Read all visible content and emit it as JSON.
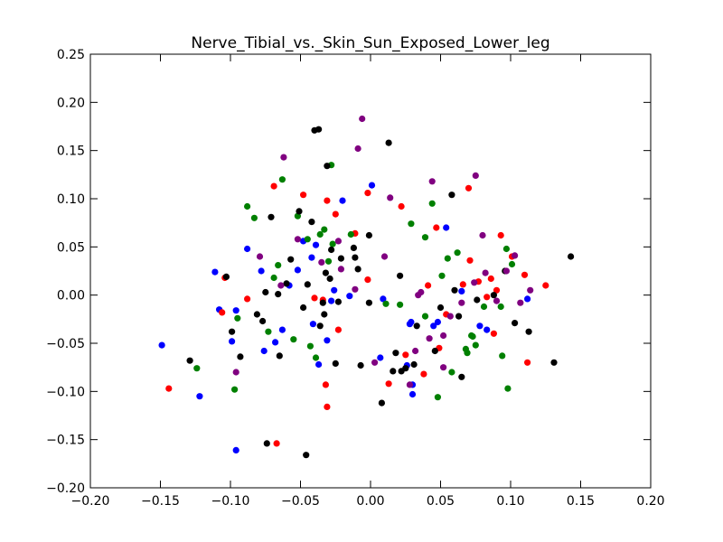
{
  "chart_data": {
    "type": "scatter",
    "title": "Nerve_Tibial_vs._Skin_Sun_Exposed_Lower_leg",
    "xlabel": "",
    "ylabel": "",
    "xlim": [
      -0.2,
      0.2
    ],
    "ylim": [
      -0.2,
      0.25
    ],
    "x_ticks": [
      -0.2,
      -0.15,
      -0.1,
      -0.05,
      0.0,
      0.05,
      0.1,
      0.15,
      0.2
    ],
    "y_ticks": [
      -0.2,
      -0.15,
      -0.1,
      -0.05,
      0.0,
      0.05,
      0.1,
      0.15,
      0.2,
      0.25
    ],
    "x_tick_labels": [
      "−0.20",
      "−0.15",
      "−0.10",
      "−0.05",
      "0.00",
      "0.05",
      "0.10",
      "0.15",
      "0.20"
    ],
    "y_tick_labels": [
      "−0.20",
      "−0.15",
      "−0.10",
      "−0.05",
      "0.00",
      "0.05",
      "0.10",
      "0.15",
      "0.20",
      "0.25"
    ],
    "grid": false,
    "legend": "none",
    "series": [
      {
        "color": "#0000ff",
        "points": [
          [
            -0.149,
            -0.052
          ],
          [
            -0.122,
            -0.105
          ],
          [
            -0.111,
            0.024
          ],
          [
            -0.108,
            -0.015
          ],
          [
            -0.099,
            -0.048
          ],
          [
            -0.096,
            -0.016
          ],
          [
            -0.096,
            -0.161
          ],
          [
            -0.088,
            0.048
          ],
          [
            -0.078,
            0.025
          ],
          [
            -0.076,
            -0.058
          ],
          [
            -0.068,
            -0.049
          ],
          [
            -0.063,
            -0.036
          ],
          [
            -0.058,
            0.01
          ],
          [
            -0.052,
            0.026
          ],
          [
            -0.048,
            0.056
          ],
          [
            -0.042,
            0.039
          ],
          [
            -0.041,
            -0.03
          ],
          [
            -0.039,
            0.052
          ],
          [
            -0.037,
            -0.072
          ],
          [
            -0.031,
            -0.047
          ],
          [
            -0.028,
            -0.006
          ],
          [
            -0.026,
            0.005
          ],
          [
            -0.02,
            0.098
          ],
          [
            -0.015,
            -0.001
          ],
          [
            0.001,
            0.114
          ],
          [
            0.007,
            -0.065
          ],
          [
            0.009,
            -0.004
          ],
          [
            0.026,
            -0.073
          ],
          [
            0.028,
            -0.03
          ],
          [
            0.029,
            -0.028
          ],
          [
            0.03,
            -0.093
          ],
          [
            0.03,
            -0.103
          ],
          [
            0.045,
            -0.032
          ],
          [
            0.048,
            -0.028
          ],
          [
            0.054,
            0.07
          ],
          [
            0.065,
            0.004
          ],
          [
            0.078,
            -0.032
          ],
          [
            0.083,
            -0.036
          ],
          [
            0.112,
            -0.004
          ]
        ]
      },
      {
        "color": "#ff0000",
        "points": [
          [
            -0.144,
            -0.097
          ],
          [
            -0.104,
            0.018
          ],
          [
            -0.106,
            -0.018
          ],
          [
            -0.088,
            -0.004
          ],
          [
            -0.069,
            0.113
          ],
          [
            -0.067,
            -0.154
          ],
          [
            -0.048,
            0.104
          ],
          [
            -0.04,
            -0.003
          ],
          [
            -0.034,
            -0.005
          ],
          [
            -0.032,
            -0.093
          ],
          [
            -0.031,
            -0.116
          ],
          [
            -0.031,
            0.098
          ],
          [
            -0.025,
            0.084
          ],
          [
            -0.023,
            -0.036
          ],
          [
            -0.011,
            0.064
          ],
          [
            -0.002,
            0.106
          ],
          [
            -0.002,
            0.016
          ],
          [
            0.013,
            -0.092
          ],
          [
            0.022,
            0.092
          ],
          [
            0.025,
            -0.062
          ],
          [
            0.038,
            -0.082
          ],
          [
            0.041,
            0.01
          ],
          [
            0.047,
            0.07
          ],
          [
            0.049,
            -0.055
          ],
          [
            0.054,
            -0.02
          ],
          [
            0.066,
            0.011
          ],
          [
            0.07,
            0.111
          ],
          [
            0.071,
            0.036
          ],
          [
            0.077,
            0.014
          ],
          [
            0.083,
            -0.002
          ],
          [
            0.086,
            0.017
          ],
          [
            0.09,
            0.005
          ],
          [
            0.093,
            0.062
          ],
          [
            0.101,
            0.04
          ],
          [
            0.11,
            0.021
          ],
          [
            0.112,
            -0.07
          ],
          [
            0.125,
            0.01
          ],
          [
            0.088,
            -0.04
          ]
        ]
      },
      {
        "color": "#008000",
        "points": [
          [
            -0.124,
            -0.076
          ],
          [
            -0.097,
            -0.098
          ],
          [
            -0.095,
            -0.024
          ],
          [
            -0.088,
            0.092
          ],
          [
            -0.083,
            0.08
          ],
          [
            -0.073,
            -0.038
          ],
          [
            -0.069,
            0.018
          ],
          [
            -0.066,
            0.031
          ],
          [
            -0.063,
            0.12
          ],
          [
            -0.055,
            -0.046
          ],
          [
            -0.052,
            0.082
          ],
          [
            -0.045,
            0.058
          ],
          [
            -0.043,
            -0.053
          ],
          [
            -0.039,
            -0.065
          ],
          [
            -0.036,
            0.063
          ],
          [
            -0.033,
            0.068
          ],
          [
            -0.03,
            0.035
          ],
          [
            -0.028,
            0.135
          ],
          [
            -0.027,
            0.053
          ],
          [
            -0.014,
            0.063
          ],
          [
            0.011,
            -0.009
          ],
          [
            0.021,
            -0.01
          ],
          [
            0.029,
            0.074
          ],
          [
            0.039,
            0.06
          ],
          [
            0.039,
            -0.022
          ],
          [
            0.044,
            0.095
          ],
          [
            0.048,
            -0.106
          ],
          [
            0.051,
            0.02
          ],
          [
            0.055,
            0.038
          ],
          [
            0.058,
            -0.08
          ],
          [
            0.062,
            0.044
          ],
          [
            0.068,
            -0.056
          ],
          [
            0.069,
            -0.06
          ],
          [
            0.072,
            -0.042
          ],
          [
            0.073,
            -0.043
          ],
          [
            0.075,
            -0.052
          ],
          [
            0.081,
            -0.012
          ],
          [
            0.093,
            -0.012
          ],
          [
            0.094,
            -0.063
          ],
          [
            0.097,
            0.048
          ],
          [
            0.098,
            -0.097
          ],
          [
            0.101,
            0.032
          ]
        ]
      },
      {
        "color": "#000000",
        "points": [
          [
            -0.129,
            -0.068
          ],
          [
            -0.103,
            0.019
          ],
          [
            -0.099,
            -0.038
          ],
          [
            -0.093,
            -0.064
          ],
          [
            -0.081,
            -0.02
          ],
          [
            -0.077,
            -0.027
          ],
          [
            -0.075,
            0.003
          ],
          [
            -0.074,
            -0.154
          ],
          [
            -0.071,
            0.081
          ],
          [
            -0.066,
            0.001
          ],
          [
            -0.065,
            -0.063
          ],
          [
            -0.06,
            0.012
          ],
          [
            -0.057,
            0.037
          ],
          [
            -0.051,
            0.087
          ],
          [
            -0.048,
            -0.013
          ],
          [
            -0.046,
            -0.166
          ],
          [
            -0.045,
            0.011
          ],
          [
            -0.042,
            0.076
          ],
          [
            -0.04,
            0.171
          ],
          [
            -0.037,
            0.172
          ],
          [
            -0.036,
            -0.032
          ],
          [
            -0.034,
            -0.008
          ],
          [
            -0.033,
            -0.02
          ],
          [
            -0.032,
            0.023
          ],
          [
            -0.031,
            0.134
          ],
          [
            -0.029,
            0.017
          ],
          [
            -0.028,
            0.047
          ],
          [
            -0.025,
            -0.071
          ],
          [
            -0.023,
            -0.007
          ],
          [
            -0.021,
            0.038
          ],
          [
            -0.012,
            0.049
          ],
          [
            -0.011,
            0.039
          ],
          [
            -0.009,
            0.027
          ],
          [
            -0.007,
            -0.073
          ],
          [
            -0.001,
            0.062
          ],
          [
            -0.001,
            -0.008
          ],
          [
            0.008,
            -0.112
          ],
          [
            0.013,
            0.158
          ],
          [
            0.016,
            -0.079
          ],
          [
            0.018,
            -0.06
          ],
          [
            0.021,
            0.02
          ],
          [
            0.022,
            -0.079
          ],
          [
            0.025,
            -0.076
          ],
          [
            0.031,
            -0.072
          ],
          [
            0.033,
            -0.032
          ],
          [
            0.046,
            -0.058
          ],
          [
            0.05,
            -0.013
          ],
          [
            0.058,
            0.104
          ],
          [
            0.06,
            0.005
          ],
          [
            0.063,
            -0.022
          ],
          [
            0.065,
            -0.085
          ],
          [
            0.076,
            -0.005
          ],
          [
            0.088,
            0.0
          ],
          [
            0.096,
            0.025
          ],
          [
            0.103,
            -0.029
          ],
          [
            0.113,
            -0.038
          ],
          [
            0.131,
            -0.07
          ],
          [
            0.143,
            0.04
          ]
        ]
      },
      {
        "color": "#800080",
        "points": [
          [
            -0.096,
            -0.08
          ],
          [
            -0.079,
            0.04
          ],
          [
            -0.064,
            0.01
          ],
          [
            -0.062,
            0.143
          ],
          [
            -0.052,
            0.058
          ],
          [
            -0.035,
            0.034
          ],
          [
            -0.023,
            0.056
          ],
          [
            -0.021,
            0.027
          ],
          [
            -0.009,
            0.152
          ],
          [
            -0.006,
            0.183
          ],
          [
            -0.011,
            0.006
          ],
          [
            0.01,
            0.04
          ],
          [
            0.014,
            0.101
          ],
          [
            0.032,
            -0.058
          ],
          [
            0.034,
            0.0
          ],
          [
            0.036,
            0.003
          ],
          [
            0.042,
            -0.045
          ],
          [
            0.044,
            0.118
          ],
          [
            0.052,
            -0.042
          ],
          [
            0.057,
            -0.022
          ],
          [
            0.065,
            -0.008
          ],
          [
            0.074,
            0.013
          ],
          [
            0.075,
            0.124
          ],
          [
            0.08,
            0.062
          ],
          [
            0.082,
            0.023
          ],
          [
            0.09,
            -0.006
          ],
          [
            0.097,
            0.025
          ],
          [
            0.103,
            0.041
          ],
          [
            0.107,
            -0.008
          ],
          [
            0.114,
            0.005
          ],
          [
            0.003,
            -0.07
          ],
          [
            0.028,
            -0.093
          ],
          [
            0.052,
            -0.075
          ]
        ]
      }
    ]
  }
}
